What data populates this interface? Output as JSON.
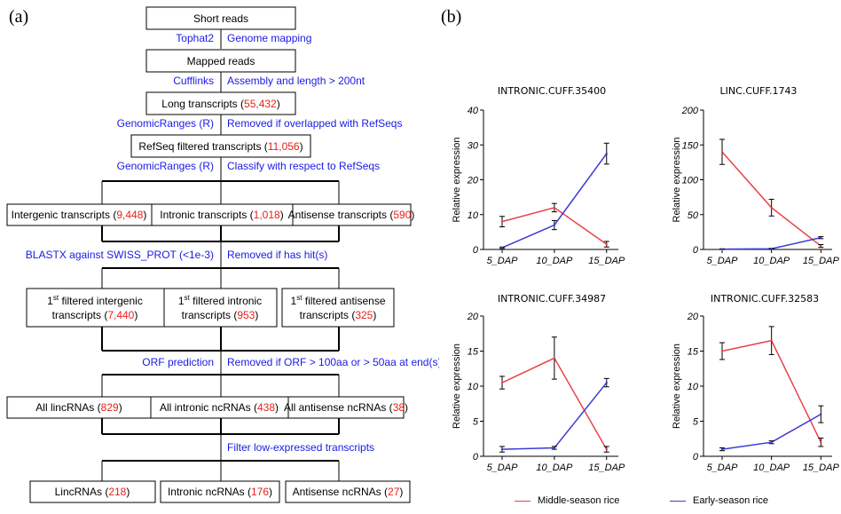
{
  "panel_a_label": "(a)",
  "panel_b_label": "(b)",
  "flowchart": {
    "short_reads": "Short reads",
    "step1_tool": "Tophat2",
    "step1_action": "Genome mapping",
    "mapped_reads": "Mapped reads",
    "step2_tool": "Cufflinks",
    "step2_action": "Assembly and length > 200nt",
    "long_transcripts": {
      "label": "Long transcripts",
      "count": "55,432"
    },
    "step3_tool": "GenomicRanges (R)",
    "step3_action": "Removed if overlapped with RefSeqs",
    "refseq_filtered": {
      "label": "RefSeq filtered transcripts",
      "count": "11,056"
    },
    "step4_tool": "GenomicRanges (R)",
    "step4_action": "Classify with respect to RefSeqs",
    "intergenic": {
      "label": "Intergenic transcripts",
      "count": "9,448"
    },
    "intronic": {
      "label": "Intronic transcripts",
      "count": "1,018"
    },
    "antisense": {
      "label": "Antisense transcripts",
      "count": "590"
    },
    "step5_tool": "BLASTX against SWISS_PROT (<1e-3)",
    "step5_action": "Removed if has hit(s)",
    "first_intergenic": {
      "line1": "filtered intergenic",
      "line2": "transcripts",
      "count": "7,440",
      "sup": "st",
      "num": "1"
    },
    "first_intronic": {
      "line1": "filtered intronic",
      "line2": "transcripts",
      "count": "953",
      "sup": "st",
      "num": "1"
    },
    "first_antisense": {
      "line1": "filtered antisense",
      "line2": "transcripts",
      "count": "325",
      "sup": "st",
      "num": "1"
    },
    "step6_tool": "ORF prediction",
    "step6_action": "Removed if ORF > 100aa or > 50aa at end(s)",
    "all_linc": {
      "label": "All lincRNAs",
      "count": "829"
    },
    "all_intronic": {
      "label": "All intronic ncRNAs",
      "count": "438"
    },
    "all_antisense": {
      "label": "All antisense ncRNAs",
      "count": "38"
    },
    "step7_action": "Filter low-expressed transcripts",
    "linc": {
      "label": "LincRNAs",
      "count": "218"
    },
    "intronic_nc": {
      "label": "Intronic ncRNAs",
      "count": "176"
    },
    "antisense_nc": {
      "label": "Antisense ncRNAs",
      "count": "27"
    }
  },
  "colors": {
    "count_red": "#e8201a",
    "tool_blue": "#1a1ae6",
    "middle": "#e8434a",
    "early": "#3a3ad6"
  },
  "legend": {
    "middle": "Middle-season rice",
    "early": "Early-season rice"
  },
  "chart_data": [
    {
      "type": "line",
      "title": "INTRONIC.CUFF.35400",
      "ylabel": "Relative expression",
      "categories": [
        "5_DAP",
        "10_DAP",
        "15_DAP"
      ],
      "ylim": [
        0,
        40
      ],
      "yticks": [
        0,
        10,
        20,
        30,
        40
      ],
      "series": [
        {
          "name": "Middle-season rice",
          "values": [
            8,
            12,
            1.5
          ],
          "errors": [
            1.5,
            1.2,
            0.8
          ]
        },
        {
          "name": "Early-season rice",
          "values": [
            0.5,
            7,
            27.5
          ],
          "errors": [
            0.2,
            1.3,
            3
          ]
        }
      ]
    },
    {
      "type": "line",
      "title": "LINC.CUFF.1743",
      "ylabel": "Relative expression",
      "categories": [
        "5_DAP",
        "10_DAP",
        "15_DAP"
      ],
      "ylim": [
        0,
        200
      ],
      "yticks": [
        0,
        50,
        100,
        150,
        200
      ],
      "series": [
        {
          "name": "Middle-season rice",
          "values": [
            140,
            60,
            5
          ],
          "errors": [
            18,
            12,
            2
          ]
        },
        {
          "name": "Early-season rice",
          "values": [
            0.5,
            1,
            17
          ],
          "errors": [
            0.3,
            0.5,
            1.5
          ]
        }
      ]
    },
    {
      "type": "line",
      "title": "INTRONIC.CUFF.34987",
      "ylabel": "Relative expression",
      "categories": [
        "5_DAP",
        "10_DAP",
        "15_DAP"
      ],
      "ylim": [
        0,
        20
      ],
      "yticks": [
        0,
        5,
        10,
        15,
        20
      ],
      "series": [
        {
          "name": "Middle-season rice",
          "values": [
            10.5,
            14,
            1
          ],
          "errors": [
            0.9,
            3,
            0.4
          ]
        },
        {
          "name": "Early-season rice",
          "values": [
            1,
            1.2,
            10.5
          ],
          "errors": [
            0.4,
            0.2,
            0.6
          ]
        }
      ]
    },
    {
      "type": "line",
      "title": "INTRONIC.CUFF.32583",
      "ylabel": "Relative expression",
      "categories": [
        "5_DAP",
        "10_DAP",
        "15_DAP"
      ],
      "ylim": [
        0,
        20
      ],
      "yticks": [
        0,
        5,
        10,
        15,
        20
      ],
      "series": [
        {
          "name": "Middle-season rice",
          "values": [
            15,
            16.5,
            2
          ],
          "errors": [
            1.2,
            2,
            0.6
          ]
        },
        {
          "name": "Early-season rice",
          "values": [
            1,
            2,
            6
          ],
          "errors": [
            0.2,
            0.2,
            1.2
          ]
        }
      ]
    }
  ]
}
